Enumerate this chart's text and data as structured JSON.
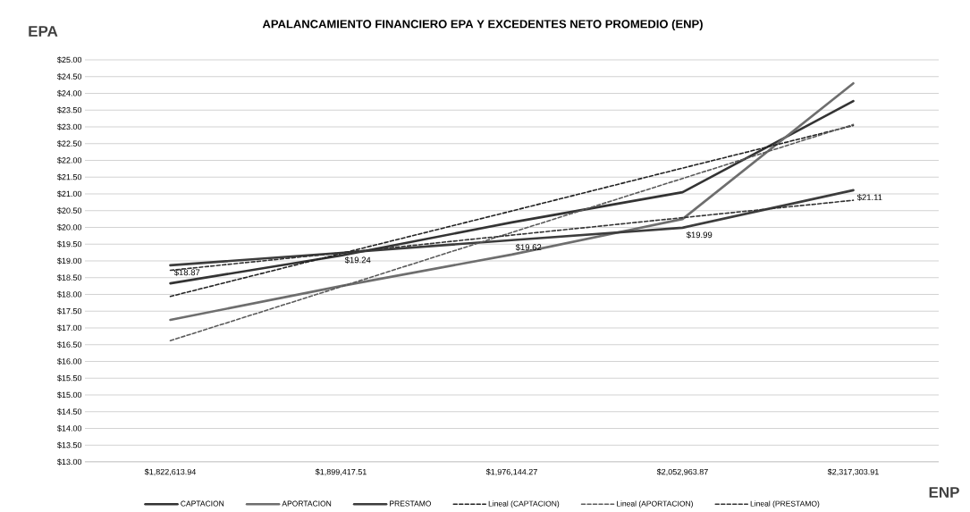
{
  "chart_data": {
    "type": "line",
    "title": "APALANCAMIENTO FINANCIERO EPA Y EXCEDENTES NETO PROMEDIO (ENP)",
    "ylabel": "EPA",
    "xlabel": "ENP",
    "categories": [
      "$1,822,613.94",
      "$1,899,417.51",
      "$1,976,144.27",
      "$2,052,963.87",
      "$2,317,303.91"
    ],
    "series": [
      {
        "name": "CAPTACION",
        "color": "#333333",
        "values": [
          18.33,
          19.16,
          20.15,
          21.05,
          23.77
        ]
      },
      {
        "name": "APORTACION",
        "color": "#6e6e6e",
        "values": [
          17.24,
          18.25,
          19.19,
          20.25,
          24.3
        ]
      },
      {
        "name": "PRESTAMO",
        "color": "#3c3c3c",
        "values": [
          18.87,
          19.24,
          19.62,
          19.99,
          21.11
        ],
        "value_labels": [
          "$18.87",
          "$19.24",
          "$19.62",
          "$19.99",
          "$21.11"
        ]
      },
      {
        "name": "Lineal (CAPTACION)",
        "color": "#222222",
        "line_style": "dashed",
        "values": [
          17.94,
          19.22,
          20.49,
          21.77,
          23.04
        ]
      },
      {
        "name": "Lineal (APORTACION)",
        "color": "#5a5a5a",
        "line_style": "dashed",
        "values": [
          16.62,
          18.23,
          19.85,
          21.46,
          23.07
        ]
      },
      {
        "name": "Lineal (PRESTAMO)",
        "color": "#333333",
        "line_style": "dashed",
        "values": [
          18.72,
          19.24,
          19.77,
          20.29,
          20.81
        ]
      }
    ],
    "ylim": [
      13,
      25
    ],
    "yticks": [
      {
        "value": 13,
        "label": "$13.00"
      },
      {
        "value": 13.5,
        "label": "$13.50"
      },
      {
        "value": 14,
        "label": "$14.00"
      },
      {
        "value": 14.5,
        "label": "$14.50"
      },
      {
        "value": 15,
        "label": "$15.00"
      },
      {
        "value": 15.5,
        "label": "$15.50"
      },
      {
        "value": 16,
        "label": "$16.00"
      },
      {
        "value": 16.5,
        "label": "$16.50"
      },
      {
        "value": 17,
        "label": "$17.00"
      },
      {
        "value": 17.5,
        "label": "$17.50"
      },
      {
        "value": 18,
        "label": "$18.00"
      },
      {
        "value": 18.5,
        "label": "$18.50"
      },
      {
        "value": 19,
        "label": "$19.00"
      },
      {
        "value": 19.5,
        "label": "$19.50"
      },
      {
        "value": 20,
        "label": "$20.00"
      },
      {
        "value": 20.5,
        "label": "$20.50"
      },
      {
        "value": 21,
        "label": "$21.00"
      },
      {
        "value": 21.5,
        "label": "$21.50"
      },
      {
        "value": 22,
        "label": "$22.00"
      },
      {
        "value": 22.5,
        "label": "$22.50"
      },
      {
        "value": 23,
        "label": "$23.00"
      },
      {
        "value": 23.5,
        "label": "$23.50"
      },
      {
        "value": 24,
        "label": "$24.00"
      },
      {
        "value": 24.5,
        "label": "$24.50"
      },
      {
        "value": 25,
        "label": "$25.00"
      }
    ],
    "grid": "y",
    "legend": "bottom",
    "marker": "none",
    "line_style": "solid"
  }
}
